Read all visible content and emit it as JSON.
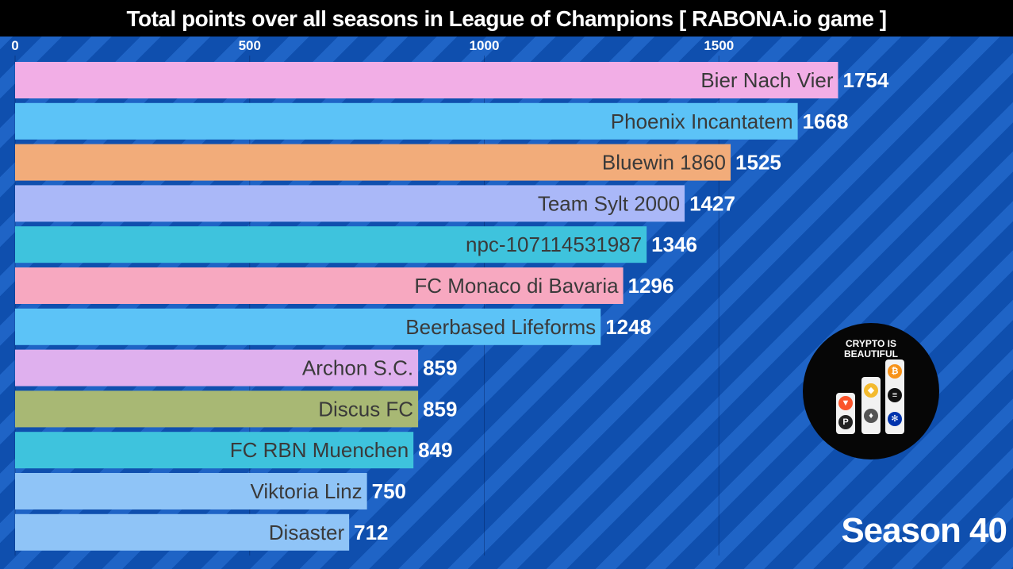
{
  "title": "Total points over all seasons in League of Champions [ RABONA.io game ]",
  "season_label": "Season 40",
  "logo": {
    "text_line1": "CRYPTO IS",
    "text_line2": "BEAUTIFUL"
  },
  "colors": {
    "background": "#1554b8",
    "title_bar": "#000000"
  },
  "chart_data": {
    "type": "bar",
    "orientation": "horizontal",
    "title": "Total points over all seasons in League of Champions [ RABONA.io game ]",
    "x_ticks": [
      0,
      500,
      1000,
      1500
    ],
    "xlim": [
      0,
      1754
    ],
    "grid": true,
    "categories": [
      "Bier Nach Vier",
      "Phoenix Incantatem",
      "Bluewin 1860",
      "Team Sylt 2000",
      "npc-107114531987",
      "FC Monaco di Bavaria",
      "Beerbased Lifeforms",
      "Archon S.C.",
      "Discus FC",
      "FC RBN Muenchen",
      "Viktoria Linz",
      "Disaster"
    ],
    "values": [
      1754,
      1668,
      1525,
      1427,
      1346,
      1296,
      1248,
      859,
      859,
      849,
      750,
      712
    ],
    "bar_colors": [
      "#f2aee6",
      "#5cc3f7",
      "#f2ac7a",
      "#aab8f8",
      "#3ec3dd",
      "#f7a8c0",
      "#5cc3f7",
      "#dfb0ee",
      "#a8b874",
      "#3ec3dd",
      "#8fc4f7",
      "#8fc4f7"
    ]
  }
}
